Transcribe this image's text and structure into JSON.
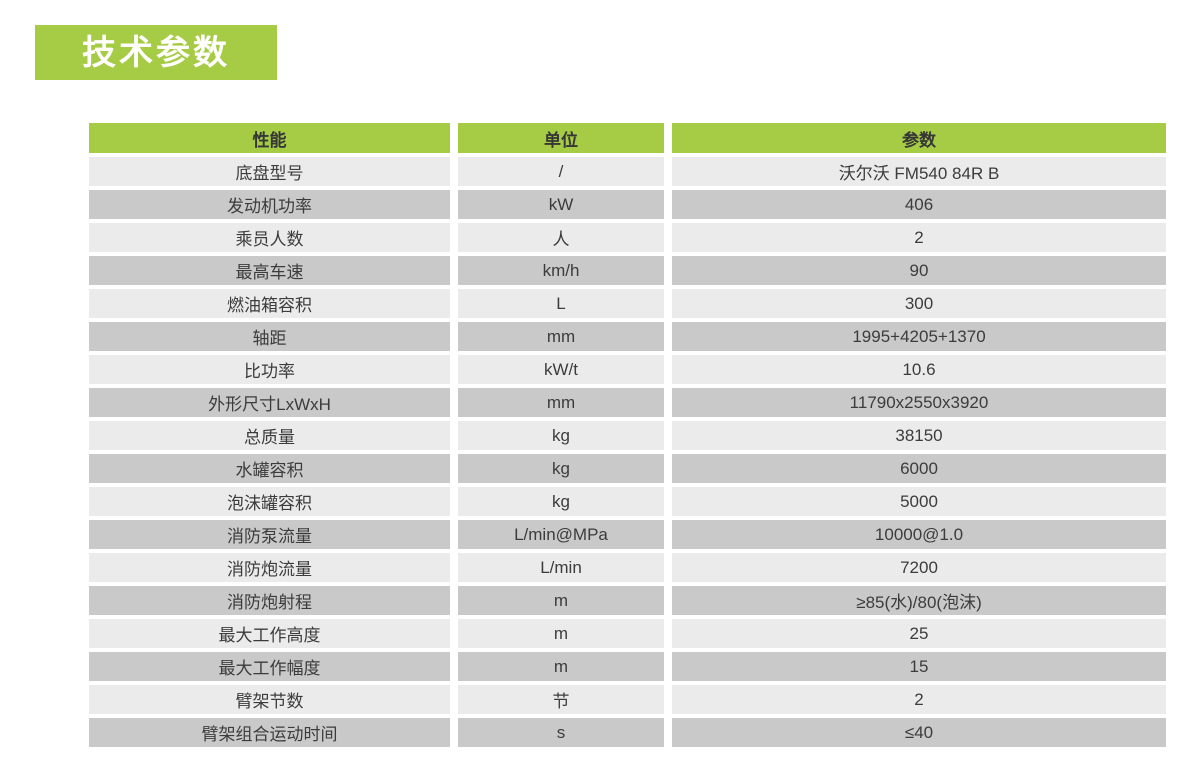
{
  "title": {
    "label": "技术参数"
  },
  "colors": {
    "accent_green": "#a6cb45",
    "row_light": "#ebebeb",
    "row_dark": "#c9c9c9",
    "title_text": "#ffffff",
    "cell_text": "#3c3c3c"
  },
  "table": {
    "headers": [
      "性能",
      "单位",
      "参数"
    ],
    "rows": [
      [
        "底盘型号",
        "/",
        "沃尔沃 FM540 84R B"
      ],
      [
        "发动机功率",
        "kW",
        "406"
      ],
      [
        "乘员人数",
        "人",
        "2"
      ],
      [
        "最高车速",
        "km/h",
        "90"
      ],
      [
        "燃油箱容积",
        "L",
        "300"
      ],
      [
        "轴距",
        "mm",
        "1995+4205+1370"
      ],
      [
        "比功率",
        "kW/t",
        "10.6"
      ],
      [
        "外形尺寸LxWxH",
        "mm",
        "11790x2550x3920"
      ],
      [
        "总质量",
        "kg",
        "38150"
      ],
      [
        "水罐容积",
        "kg",
        "6000"
      ],
      [
        "泡沫罐容积",
        "kg",
        "5000"
      ],
      [
        "消防泵流量",
        "L/min@MPa",
        "10000@1.0"
      ],
      [
        "消防炮流量",
        "L/min",
        "7200"
      ],
      [
        "消防炮射程",
        "m",
        "≥85(水)/80(泡沫)"
      ],
      [
        "最大工作高度",
        "m",
        "25"
      ],
      [
        "最大工作幅度",
        "m",
        "15"
      ],
      [
        "臂架节数",
        "节",
        "2"
      ],
      [
        "臂架组合运动时间",
        "s",
        "≤40"
      ]
    ]
  }
}
